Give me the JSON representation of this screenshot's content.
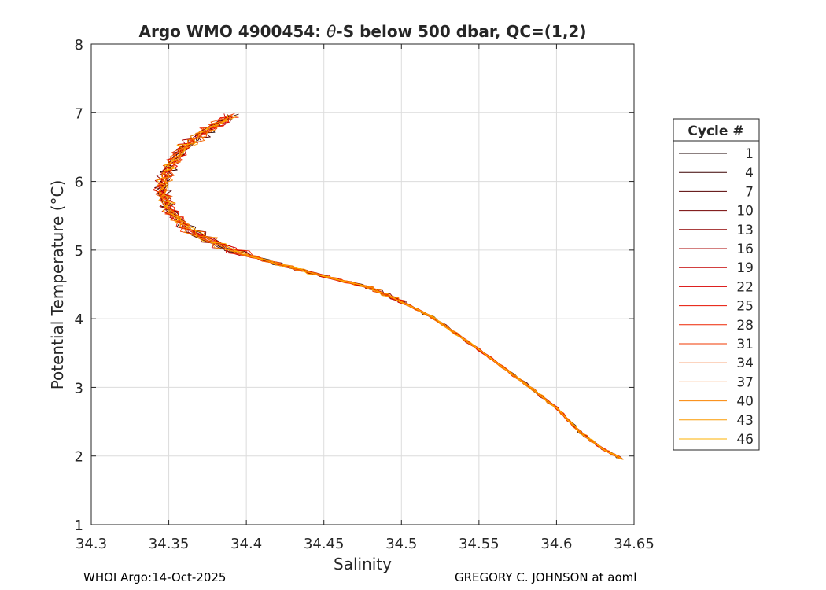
{
  "chart_data": {
    "type": "line",
    "title_lead": "Argo WMO 4900454: ",
    "title_symbol": "θ",
    "title_tail": "-S below 500 dbar,  QC=(1,2)",
    "xlabel": "Salinity",
    "ylabel": "Potential Temperature (°C)",
    "xlim": [
      34.3,
      34.65
    ],
    "ylim": [
      1,
      8
    ],
    "x_ticks": [
      "34.3",
      "34.35",
      "34.4",
      "34.45",
      "34.5",
      "34.55",
      "34.6",
      "34.65"
    ],
    "y_ticks": [
      "1",
      "2",
      "3",
      "4",
      "5",
      "6",
      "7",
      "8"
    ],
    "grid": true,
    "legend_title": "Cycle #",
    "legend_position": "right",
    "series": [
      {
        "name": "1",
        "color": "#1a0000"
      },
      {
        "name": "4",
        "color": "#3a0000"
      },
      {
        "name": "7",
        "color": "#550000"
      },
      {
        "name": "10",
        "color": "#720000"
      },
      {
        "name": "13",
        "color": "#8f0000"
      },
      {
        "name": "16",
        "color": "#aa0000"
      },
      {
        "name": "19",
        "color": "#c40000"
      },
      {
        "name": "22",
        "color": "#d80000"
      },
      {
        "name": "25",
        "color": "#e61000"
      },
      {
        "name": "28",
        "color": "#ee2400"
      },
      {
        "name": "31",
        "color": "#f23a00"
      },
      {
        "name": "34",
        "color": "#f55200"
      },
      {
        "name": "37",
        "color": "#f86a00"
      },
      {
        "name": "40",
        "color": "#fa8200"
      },
      {
        "name": "43",
        "color": "#fc9a00"
      },
      {
        "name": "46",
        "color": "#feb200"
      }
    ],
    "mean_profile": {
      "salinity": [
        34.39,
        34.375,
        34.36,
        34.35,
        34.345,
        34.35,
        34.362,
        34.39,
        34.42,
        34.45,
        34.48,
        34.5,
        34.52,
        34.55,
        34.58,
        34.6,
        34.615,
        34.63,
        34.643
      ],
      "theta": [
        6.95,
        6.75,
        6.5,
        6.2,
        5.9,
        5.6,
        5.3,
        5.0,
        4.8,
        4.62,
        4.45,
        4.25,
        4.02,
        3.55,
        3.05,
        2.7,
        2.35,
        2.1,
        1.95
      ]
    }
  },
  "footer": {
    "left": "WHOI Argo:14-Oct-2025",
    "right": "GREGORY C. JOHNSON at aoml"
  }
}
